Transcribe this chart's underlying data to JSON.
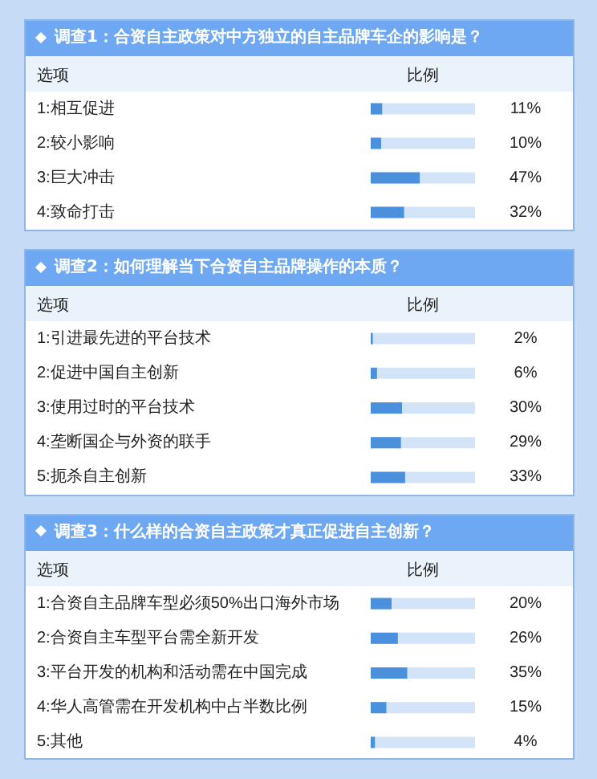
{
  "chart_data": [
    {
      "type": "bar",
      "orientation": "horizontal",
      "title": "调查1：合资自主政策对中方独立的自主品牌车企的影响是？",
      "ylabel": "选项",
      "xlabel": "比例",
      "categories": [
        "1:相互促进",
        "2:较小影响",
        "3:巨大冲击",
        "4:致命打击"
      ],
      "values": [
        11,
        10,
        47,
        32
      ],
      "value_labels": [
        "11%",
        "10%",
        "47%",
        "32%"
      ],
      "color": "#4a90dc",
      "xlim": [
        0,
        100
      ],
      "tick_labels": "y"
    },
    {
      "type": "bar",
      "orientation": "horizontal",
      "title": "调查2：如何理解当下合资自主品牌操作的本质？",
      "ylabel": "选项",
      "xlabel": "比例",
      "categories": [
        "1:引进最先进的平台技术",
        "2:促进中国自主创新",
        "3:使用过时的平台技术",
        "4:垄断国企与外资的联手",
        "5:扼杀自主创新"
      ],
      "values": [
        2,
        6,
        30,
        29,
        33
      ],
      "value_labels": [
        "2%",
        "6%",
        "30%",
        "29%",
        "33%"
      ],
      "color": "#4a90dc",
      "xlim": [
        0,
        100
      ],
      "tick_labels": "y"
    },
    {
      "type": "bar",
      "orientation": "horizontal",
      "title": "调查3：什么样的合资自主政策才真正促进自主创新？",
      "ylabel": "选项",
      "xlabel": "比例",
      "categories": [
        "1:合资自主品牌车型必须50%出口海外市场",
        "2:合资自主车型平台需全新开发",
        "3:平台开发的机构和活动需在中国完成",
        "4:华人高管需在开发机构中占半数比例",
        "5:其他"
      ],
      "values": [
        20,
        26,
        35,
        15,
        4
      ],
      "value_labels": [
        "20%",
        "26%",
        "35%",
        "15%",
        "4%"
      ],
      "color": "#4a90dc",
      "xlim": [
        0,
        100
      ],
      "tick_labels": "y"
    }
  ]
}
